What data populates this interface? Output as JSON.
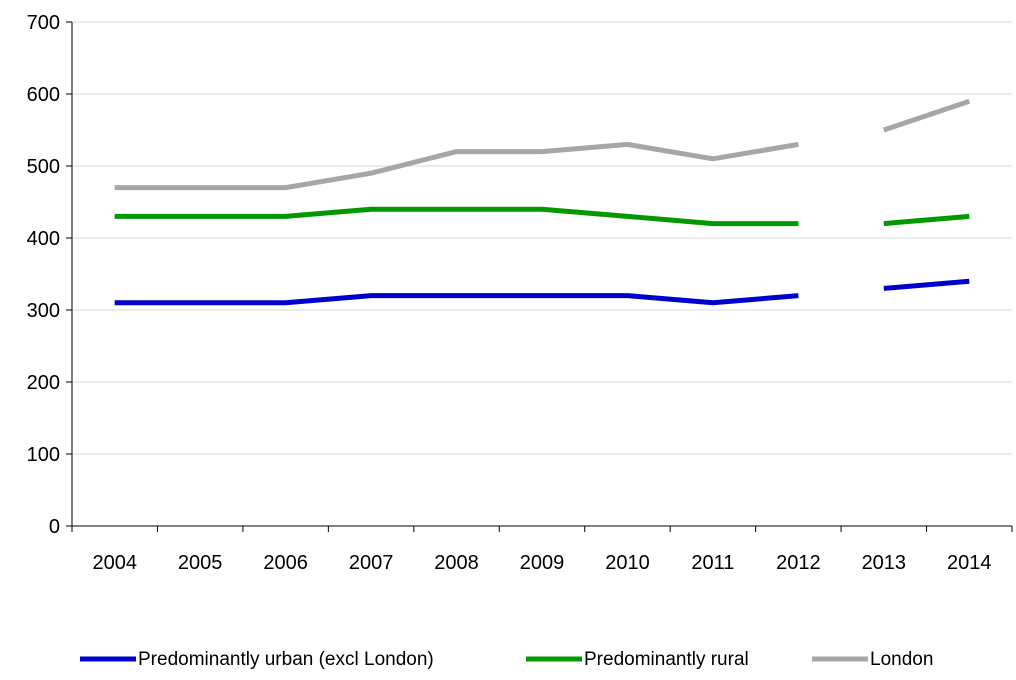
{
  "chart_data": {
    "type": "line",
    "title": "",
    "xlabel": "",
    "ylabel": "",
    "ylim": [
      0,
      700
    ],
    "yticks": [
      0,
      100,
      200,
      300,
      400,
      500,
      600,
      700
    ],
    "grid": true,
    "legend_position": "bottom",
    "categories": [
      "2004",
      "2005",
      "2006",
      "2007",
      "2008",
      "2009",
      "2010",
      "2011",
      "2012",
      "2013",
      "2014"
    ],
    "series": [
      {
        "name": "Predominantly urban (excl London)",
        "color": "#0000cc",
        "values": [
          310,
          310,
          310,
          320,
          320,
          320,
          320,
          310,
          320,
          330,
          340
        ],
        "segments": [
          [
            0,
            8
          ],
          [
            9,
            10
          ]
        ]
      },
      {
        "name": "Predominantly rural",
        "color": "#009900",
        "values": [
          430,
          430,
          430,
          440,
          440,
          440,
          430,
          420,
          420,
          420,
          430
        ],
        "segments": [
          [
            0,
            8
          ],
          [
            9,
            10
          ]
        ]
      },
      {
        "name": "London",
        "color": "#a6a6a6",
        "values": [
          470,
          470,
          470,
          490,
          520,
          520,
          530,
          510,
          530,
          550,
          590
        ],
        "segments": [
          [
            0,
            8
          ],
          [
            9,
            10
          ]
        ]
      }
    ]
  }
}
